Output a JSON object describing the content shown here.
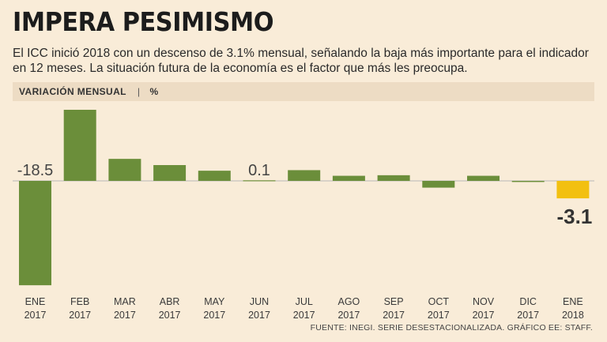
{
  "header": {
    "title": "IMPERA PESIMISMO",
    "subtitle": "El ICC inició 2018 con un descenso de 3.1% mensual, señalando la baja más importante para el indicador en 12 meses. La situación futura de la economía es el factor que más les preocupa."
  },
  "unit_bar": {
    "label": "VARIACIÓN MENSUAL",
    "separator": "|",
    "unit": "%"
  },
  "footer": {
    "source": "FUENTE: INEGI. SERIE DESESTACIONALIZADA. GRÁFICO EE: STAFF."
  },
  "colors": {
    "background": "#f9ecd8",
    "bar": "#6b8e3a",
    "highlight": "#f2c011",
    "baseline": "#b9b9b9",
    "tick_text": "#3a3a3a"
  },
  "chart_data": {
    "type": "bar",
    "title": "VARIACIÓN MENSUAL",
    "ylabel": "%",
    "categories": [
      [
        "ENE",
        "2017"
      ],
      [
        "FEB",
        "2017"
      ],
      [
        "MAR",
        "2017"
      ],
      [
        "ABR",
        "2017"
      ],
      [
        "MAY",
        "2017"
      ],
      [
        "JUN",
        "2017"
      ],
      [
        "JUL",
        "2017"
      ],
      [
        "AGO",
        "2017"
      ],
      [
        "SEP",
        "2017"
      ],
      [
        "OCT",
        "2017"
      ],
      [
        "NOV",
        "2017"
      ],
      [
        "DIC",
        "2017"
      ],
      [
        "ENE",
        "2018"
      ]
    ],
    "values": [
      -18.5,
      12.6,
      3.9,
      2.8,
      1.8,
      0.1,
      1.9,
      0.9,
      1.0,
      -1.2,
      0.9,
      -0.2,
      -3.1
    ],
    "highlight_index": 12,
    "data_labels": [
      {
        "index": 0,
        "text": "-18.5"
      },
      {
        "index": 5,
        "text": "0.1"
      },
      {
        "index": 12,
        "text": "-3.1"
      }
    ],
    "ylim": [
      -18.5,
      12.6
    ],
    "grid": false
  }
}
